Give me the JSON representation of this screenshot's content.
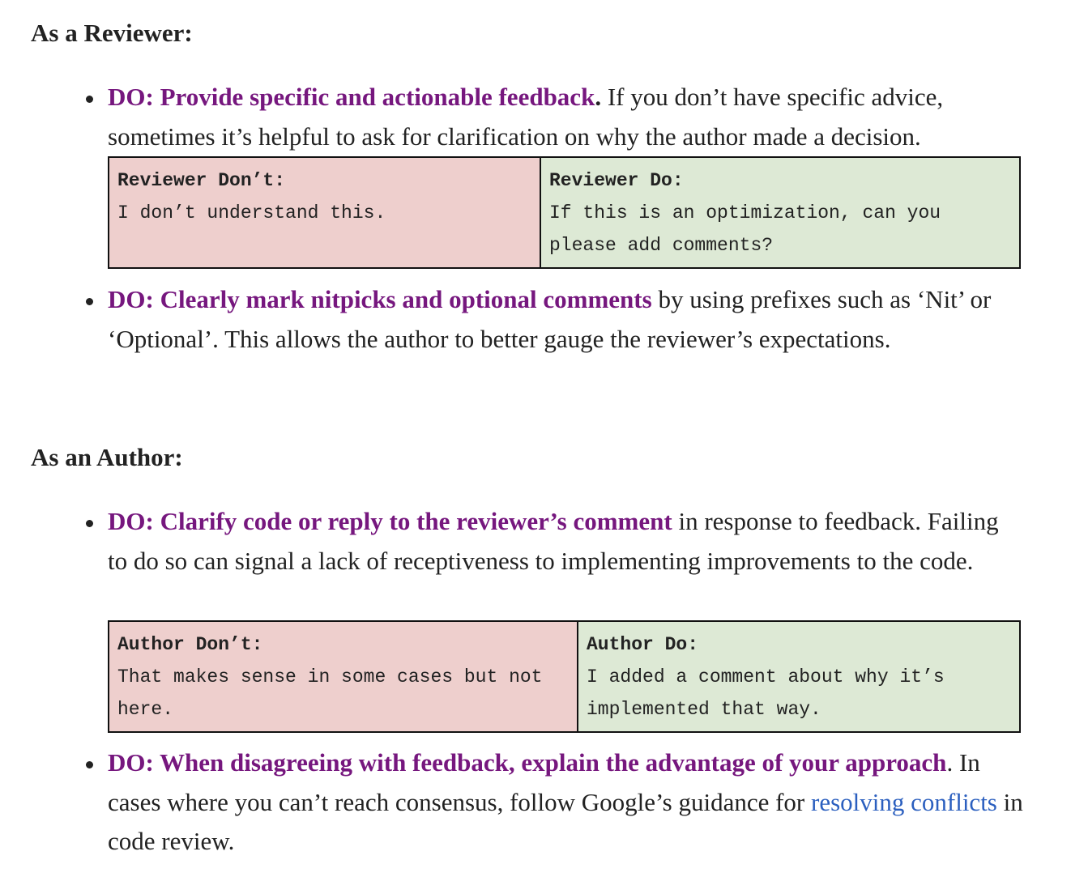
{
  "reviewer_section": {
    "heading": "As a Reviewer:",
    "item1": {
      "lead": "DO: Provide specific and actionable feedback",
      "lead_period": ".",
      "text": " If you don’t have specific advice, sometimes it’s helpful to ask for clarification on why the author made a decision."
    },
    "example": {
      "dont_label": "Reviewer Don’t:",
      "dont_text": "I don’t understand this.",
      "do_label": "Reviewer Do:",
      "do_text": "If this is an optimization, can you please add comments?"
    },
    "item2": {
      "lead": "DO: Clearly mark nitpicks and optional comments",
      "text": " by using prefixes such as ‘Nit’ or ‘Optional’. This allows the author to better gauge the reviewer’s expectations."
    }
  },
  "author_section": {
    "heading": "As an Author:",
    "item1": {
      "lead": "DO: Clarify code or reply to the reviewer’s comment",
      "text": " in response to feedback. Failing to do so can signal a lack of receptiveness to implementing improvements to the code."
    },
    "example": {
      "dont_label": "Author Don’t:",
      "dont_text": "That makes sense in some cases but not here.",
      "do_label": "Author Do:",
      "do_text": "I added a comment about why it’s implemented that way."
    },
    "item2": {
      "lead": "DO: When disagreeing with feedback, explain the advantage of your approach",
      "text_before_link": ". In cases where you can’t reach consensus, follow Google’s guidance for ",
      "link_text": "resolving conflicts",
      "text_after_link": " in code review."
    }
  },
  "colors": {
    "lead_purple": "#76177e",
    "link_blue": "#2b5fbf",
    "dont_bg": "#eecfcd",
    "do_bg": "#dde9d5"
  }
}
